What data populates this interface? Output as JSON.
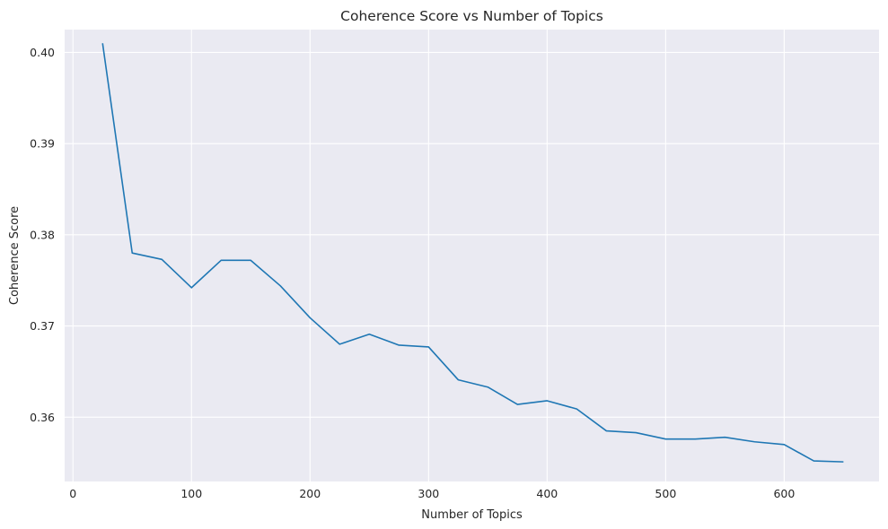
{
  "chart_data": {
    "type": "line",
    "title": "Coherence Score vs Number of Topics",
    "xlabel": "Number of Topics",
    "ylabel": "Coherence Score",
    "xlim": [
      -7,
      680
    ],
    "ylim": [
      0.35295,
      0.4025
    ],
    "grid": true,
    "xticks": [
      0,
      100,
      200,
      300,
      400,
      500,
      600
    ],
    "yticks": [
      0.36,
      0.37,
      0.38,
      0.39,
      0.4
    ],
    "ytick_labels": [
      "0.36",
      "0.37",
      "0.38",
      "0.39",
      "0.40"
    ],
    "colors": {
      "line": "#1f77b4",
      "plot_background": "#eaeaf2",
      "grid": "#ffffff"
    },
    "series": [
      {
        "x": [
          25,
          50,
          75,
          100,
          125,
          150,
          175,
          200,
          225,
          250,
          275,
          300,
          325,
          350,
          375,
          400,
          425,
          450,
          475,
          500,
          525,
          550,
          575,
          600,
          625,
          650
        ],
        "values": [
          0.401,
          0.378,
          0.3773,
          0.3742,
          0.3772,
          0.3772,
          0.3744,
          0.3709,
          0.368,
          0.3691,
          0.3679,
          0.3677,
          0.3641,
          0.3633,
          0.3614,
          0.3618,
          0.3609,
          0.3585,
          0.3583,
          0.3576,
          0.3576,
          0.3578,
          0.3573,
          0.357,
          0.3552,
          0.3551
        ]
      }
    ]
  }
}
